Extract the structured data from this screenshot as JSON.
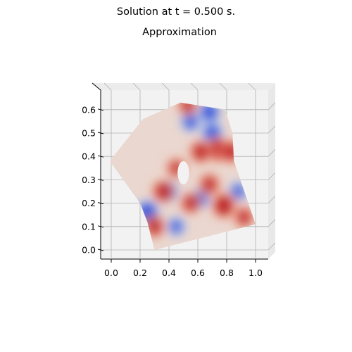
{
  "figure": {
    "suptitle": "Solution at t = 0.500 s."
  },
  "chart_data": {
    "type": "heatmap",
    "title": "Approximation",
    "xlabel": "",
    "ylabel": "",
    "xlim": [
      -0.05,
      1.07
    ],
    "ylim": [
      -0.04,
      0.67
    ],
    "x_ticks": [
      0.0,
      0.2,
      0.4,
      0.6,
      0.8,
      1.0
    ],
    "y_ticks": [
      0.0,
      0.1,
      0.2,
      0.3,
      0.4,
      0.5,
      0.6
    ],
    "x_tick_labels": [
      "0.0",
      "0.2",
      "0.4",
      "0.6",
      "0.8",
      "1.0"
    ],
    "y_tick_labels": [
      "0.0",
      "0.1",
      "0.2",
      "0.3",
      "0.4",
      "0.5",
      "0.6"
    ],
    "grid": true,
    "colormap": "coolwarm",
    "domain_boundary": [
      [
        -0.01,
        0.38
      ],
      [
        0.22,
        0.56
      ],
      [
        0.48,
        0.63
      ],
      [
        0.79,
        0.6
      ],
      [
        0.84,
        0.5
      ],
      [
        0.85,
        0.38
      ],
      [
        1.0,
        0.11
      ],
      [
        0.3,
        0.0
      ],
      [
        0.25,
        0.12
      ],
      [
        0.2,
        0.2
      ]
    ],
    "hole": {
      "cx": 0.5,
      "cy": 0.33,
      "rx": 0.04,
      "ry": 0.05
    },
    "features": [
      {
        "kind": "blue",
        "x": 0.25,
        "y": 0.16,
        "strength": 1.0
      },
      {
        "kind": "blue",
        "x": 0.68,
        "y": 0.59,
        "strength": 0.8
      },
      {
        "kind": "blue",
        "x": 0.7,
        "y": 0.5,
        "strength": 0.7
      },
      {
        "kind": "blue",
        "x": 0.55,
        "y": 0.55,
        "strength": 0.5
      },
      {
        "kind": "blue",
        "x": 0.4,
        "y": 0.25,
        "strength": 0.4
      },
      {
        "kind": "blue",
        "x": 0.62,
        "y": 0.22,
        "strength": 0.35
      },
      {
        "kind": "blue",
        "x": 0.88,
        "y": 0.25,
        "strength": 0.35
      },
      {
        "kind": "blue",
        "x": 0.45,
        "y": 0.1,
        "strength": 0.3
      },
      {
        "kind": "red",
        "x": 0.78,
        "y": 0.19,
        "strength": 1.0
      },
      {
        "kind": "red",
        "x": 0.74,
        "y": 0.43,
        "strength": 0.9
      },
      {
        "kind": "red",
        "x": 0.62,
        "y": 0.42,
        "strength": 0.7
      },
      {
        "kind": "red",
        "x": 0.83,
        "y": 0.42,
        "strength": 0.7
      },
      {
        "kind": "red",
        "x": 0.36,
        "y": 0.25,
        "strength": 0.7
      },
      {
        "kind": "red",
        "x": 0.3,
        "y": 0.1,
        "strength": 0.6
      },
      {
        "kind": "red",
        "x": 0.55,
        "y": 0.2,
        "strength": 0.5
      },
      {
        "kind": "red",
        "x": 0.68,
        "y": 0.28,
        "strength": 0.55
      },
      {
        "kind": "red",
        "x": 0.92,
        "y": 0.14,
        "strength": 0.45
      },
      {
        "kind": "red",
        "x": 0.53,
        "y": 0.62,
        "strength": 0.4
      },
      {
        "kind": "red",
        "x": 0.45,
        "y": 0.35,
        "strength": 0.35
      }
    ]
  }
}
